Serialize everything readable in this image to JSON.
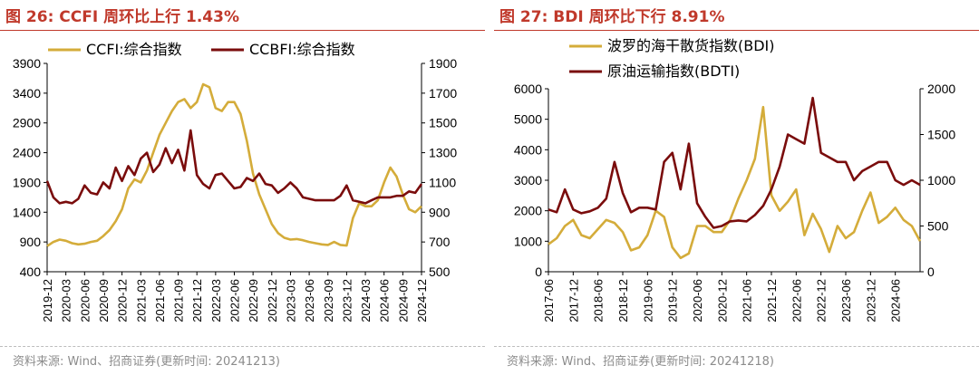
{
  "figures": [
    {
      "title": "图 26:  CCFI 周环比上行 1.43%",
      "source": "资料来源:  Wind、招商证券(更新时间:  20241213)"
    },
    {
      "title": "图 27:  BDI 周环比下行 8.91%",
      "source": "资料来源:  Wind、招商证券(更新时间:  20241218)"
    }
  ],
  "chart_data": [
    {
      "type": "line",
      "colors": {
        "series_a": "#d4ac3a",
        "series_b": "#7a0c0c"
      },
      "x_tick_labels": [
        "2019-12",
        "2020-03",
        "2020-06",
        "2020-09",
        "2020-12",
        "2021-03",
        "2021-06",
        "2021-09",
        "2021-12",
        "2022-03",
        "2022-06",
        "2022-09",
        "2022-12",
        "2023-03",
        "2023-06",
        "2023-09",
        "2023-12",
        "2024-03",
        "2024-06",
        "2024-09",
        "2024-12"
      ],
      "x_range": [
        "2019-12",
        "2024-12"
      ],
      "y_left": {
        "range": [
          400,
          3900
        ],
        "ticks": [
          400,
          900,
          1400,
          1900,
          2400,
          2900,
          3400,
          3900
        ]
      },
      "y_right": {
        "range": [
          500,
          1900
        ],
        "ticks": [
          500,
          700,
          900,
          1100,
          1300,
          1500,
          1700,
          1900
        ]
      },
      "legend_position": "top",
      "series": [
        {
          "name": "CCFI:综合指数",
          "axis": "left",
          "x": [
            "2019-12",
            "2020-01",
            "2020-02",
            "2020-03",
            "2020-04",
            "2020-05",
            "2020-06",
            "2020-07",
            "2020-08",
            "2020-09",
            "2020-10",
            "2020-11",
            "2020-12",
            "2021-01",
            "2021-02",
            "2021-03",
            "2021-04",
            "2021-05",
            "2021-06",
            "2021-07",
            "2021-08",
            "2021-09",
            "2021-10",
            "2021-11",
            "2021-12",
            "2022-01",
            "2022-02",
            "2022-03",
            "2022-04",
            "2022-05",
            "2022-06",
            "2022-07",
            "2022-08",
            "2022-09",
            "2022-10",
            "2022-11",
            "2022-12",
            "2023-01",
            "2023-02",
            "2023-03",
            "2023-04",
            "2023-05",
            "2023-06",
            "2023-07",
            "2023-08",
            "2023-09",
            "2023-10",
            "2023-11",
            "2023-12",
            "2024-01",
            "2024-02",
            "2024-03",
            "2024-04",
            "2024-05",
            "2024-06",
            "2024-07",
            "2024-08",
            "2024-09",
            "2024-10",
            "2024-11",
            "2024-12"
          ],
          "y": [
            830,
            900,
            940,
            920,
            880,
            860,
            870,
            900,
            920,
            1000,
            1100,
            1250,
            1450,
            1800,
            1950,
            1900,
            2100,
            2400,
            2700,
            2900,
            3100,
            3250,
            3300,
            3150,
            3250,
            3550,
            3500,
            3150,
            3100,
            3250,
            3250,
            3050,
            2600,
            2050,
            1700,
            1450,
            1200,
            1050,
            970,
            940,
            950,
            930,
            900,
            880,
            860,
            850,
            900,
            850,
            840,
            1300,
            1550,
            1500,
            1500,
            1600,
            1900,
            2150,
            2000,
            1700,
            1450,
            1400,
            1500
          ]
        },
        {
          "name": "CCBFI:综合指数",
          "axis": "right",
          "x": [
            "2019-12",
            "2020-01",
            "2020-02",
            "2020-03",
            "2020-04",
            "2020-05",
            "2020-06",
            "2020-07",
            "2020-08",
            "2020-09",
            "2020-10",
            "2020-11",
            "2020-12",
            "2021-01",
            "2021-02",
            "2021-03",
            "2021-04",
            "2021-05",
            "2021-06",
            "2021-07",
            "2021-08",
            "2021-09",
            "2021-10",
            "2021-11",
            "2021-12",
            "2022-01",
            "2022-02",
            "2022-03",
            "2022-04",
            "2022-05",
            "2022-06",
            "2022-07",
            "2022-08",
            "2022-09",
            "2022-10",
            "2022-11",
            "2022-12",
            "2023-01",
            "2023-02",
            "2023-03",
            "2023-04",
            "2023-05",
            "2023-06",
            "2023-07",
            "2023-08",
            "2023-09",
            "2023-10",
            "2023-11",
            "2023-12",
            "2024-01",
            "2024-02",
            "2024-03",
            "2024-04",
            "2024-05",
            "2024-06",
            "2024-07",
            "2024-08",
            "2024-09",
            "2024-10",
            "2024-11",
            "2024-12"
          ],
          "y": [
            1110,
            1000,
            960,
            970,
            960,
            990,
            1080,
            1030,
            1020,
            1100,
            1060,
            1200,
            1110,
            1210,
            1150,
            1260,
            1300,
            1170,
            1220,
            1330,
            1230,
            1320,
            1180,
            1450,
            1150,
            1090,
            1060,
            1150,
            1160,
            1110,
            1060,
            1070,
            1130,
            1110,
            1160,
            1090,
            1080,
            1030,
            1060,
            1100,
            1060,
            1000,
            990,
            980,
            980,
            980,
            980,
            1010,
            1080,
            980,
            970,
            960,
            980,
            1000,
            1000,
            1000,
            1010,
            1010,
            1040,
            1030,
            1090
          ]
        }
      ]
    },
    {
      "type": "line",
      "colors": {
        "series_a": "#d4ac3a",
        "series_b": "#7a0c0c"
      },
      "x_tick_labels": [
        "2017-06",
        "2017-12",
        "2018-06",
        "2018-12",
        "2019-06",
        "2019-12",
        "2020-06",
        "2020-12",
        "2021-06",
        "2021-12",
        "2022-06",
        "2022-12",
        "2023-06",
        "2023-12",
        "2024-06"
      ],
      "x_range": [
        "2017-06",
        "2024-12"
      ],
      "y_left": {
        "range": [
          0,
          6000
        ],
        "ticks": [
          0,
          1000,
          2000,
          3000,
          4000,
          5000,
          6000
        ]
      },
      "y_right": {
        "range": [
          0,
          2000
        ],
        "ticks": [
          0,
          500,
          1000,
          1500,
          2000
        ]
      },
      "legend_position": "top",
      "series": [
        {
          "name": "波罗的海干散货指数(BDI)",
          "axis": "left",
          "x": [
            "2017-06",
            "2017-08",
            "2017-10",
            "2017-12",
            "2018-02",
            "2018-04",
            "2018-06",
            "2018-08",
            "2018-10",
            "2018-12",
            "2019-02",
            "2019-04",
            "2019-06",
            "2019-08",
            "2019-10",
            "2019-12",
            "2020-02",
            "2020-04",
            "2020-06",
            "2020-08",
            "2020-10",
            "2020-12",
            "2021-02",
            "2021-04",
            "2021-06",
            "2021-08",
            "2021-10",
            "2021-12",
            "2022-02",
            "2022-04",
            "2022-06",
            "2022-08",
            "2022-10",
            "2022-12",
            "2023-02",
            "2023-04",
            "2023-06",
            "2023-08",
            "2023-10",
            "2023-12",
            "2024-02",
            "2024-04",
            "2024-06",
            "2024-08",
            "2024-10",
            "2024-12"
          ],
          "y": [
            900,
            1100,
            1500,
            1700,
            1200,
            1100,
            1400,
            1700,
            1600,
            1300,
            700,
            800,
            1200,
            2000,
            1800,
            800,
            450,
            600,
            1500,
            1500,
            1300,
            1300,
            1700,
            2400,
            3000,
            3700,
            5400,
            2500,
            2000,
            2300,
            2700,
            1200,
            1900,
            1400,
            650,
            1500,
            1100,
            1300,
            2000,
            2600,
            1600,
            1800,
            2100,
            1700,
            1500,
            1000
          ]
        },
        {
          "name": "原油运输指数(BDTI)",
          "axis": "right",
          "x": [
            "2017-06",
            "2017-08",
            "2017-10",
            "2017-12",
            "2018-02",
            "2018-04",
            "2018-06",
            "2018-08",
            "2018-10",
            "2018-12",
            "2019-02",
            "2019-04",
            "2019-06",
            "2019-08",
            "2019-10",
            "2019-12",
            "2020-02",
            "2020-04",
            "2020-06",
            "2020-08",
            "2020-10",
            "2020-12",
            "2021-02",
            "2021-04",
            "2021-06",
            "2021-08",
            "2021-10",
            "2021-12",
            "2022-02",
            "2022-04",
            "2022-06",
            "2022-08",
            "2022-10",
            "2022-12",
            "2023-02",
            "2023-04",
            "2023-06",
            "2023-08",
            "2023-10",
            "2023-12",
            "2024-02",
            "2024-04",
            "2024-06",
            "2024-08",
            "2024-10",
            "2024-12"
          ],
          "y": [
            680,
            650,
            900,
            680,
            640,
            660,
            700,
            800,
            1200,
            860,
            650,
            700,
            700,
            680,
            1200,
            1300,
            900,
            1400,
            750,
            600,
            480,
            500,
            550,
            560,
            550,
            620,
            720,
            900,
            1150,
            1500,
            1450,
            1400,
            1900,
            1300,
            1250,
            1200,
            1200,
            1000,
            1100,
            1150,
            1200,
            1200,
            1000,
            950,
            1000,
            950
          ]
        }
      ]
    }
  ]
}
